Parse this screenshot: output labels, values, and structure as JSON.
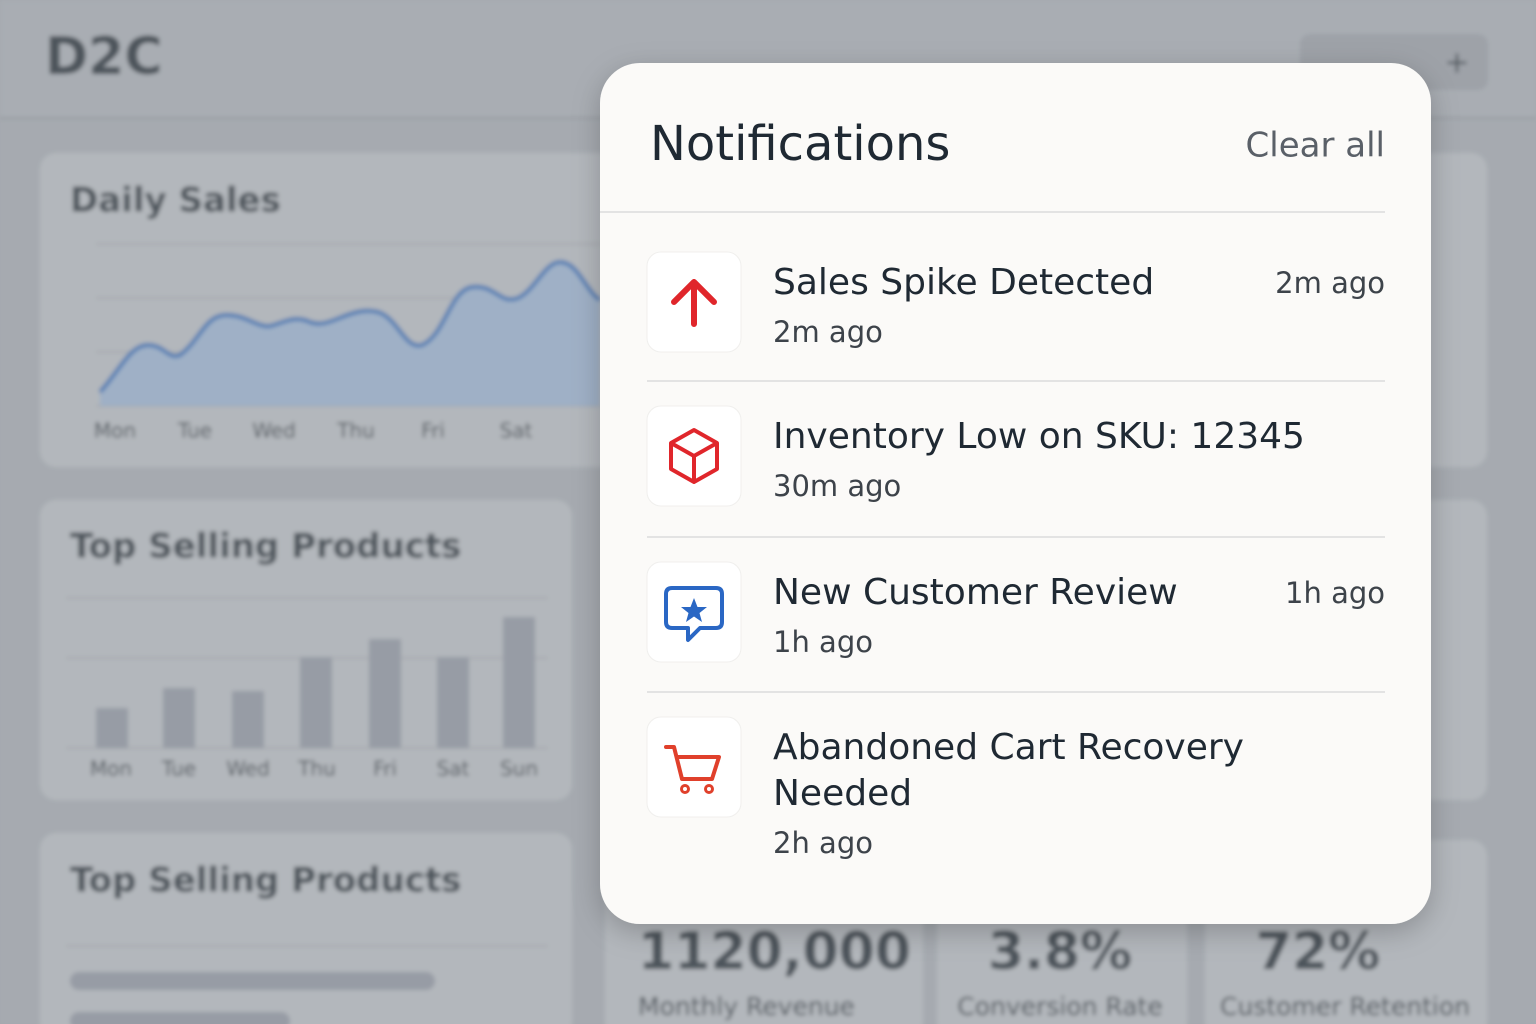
{
  "dashboard": {
    "brand": "D2C",
    "daily_sales": {
      "title": "Daily Sales",
      "days": [
        "Mon",
        "Tue",
        "Wed",
        "Thu",
        "Fri",
        "Sat"
      ]
    },
    "top_selling": {
      "title": "Top Selling Products",
      "days": [
        "Mon",
        "Tue",
        "Wed",
        "Thu",
        "Fri",
        "Sat",
        "Sun"
      ]
    },
    "top_selling_2": {
      "title": "Top Selling Products"
    },
    "stats": [
      {
        "value": "1120,000",
        "label": "Monthly Revenue"
      },
      {
        "value": "3.8%",
        "label": "Conversion Rate"
      },
      {
        "value": "72%",
        "label": "Customer Retention"
      }
    ]
  },
  "notifications": {
    "title": "Notifications",
    "clear_all": "Clear all",
    "items": [
      {
        "title": "Sales Spike Detected",
        "time": "2m ago",
        "time_right": "2m ago"
      },
      {
        "title": "Inventory Low on SKU: 12345",
        "time": "30m ago"
      },
      {
        "title": "New Customer Review",
        "time": "1h ago",
        "time_right": "1h ago"
      },
      {
        "title": "Abandoned Cart Recovery",
        "title_line2": "Needed",
        "time": "2h ago"
      }
    ]
  }
}
